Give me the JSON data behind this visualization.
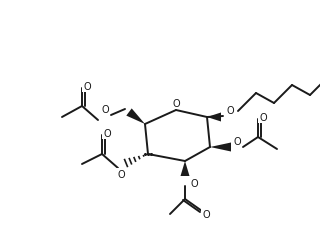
{
  "bg_color": "#ffffff",
  "line_color": "#1a1a1a",
  "lw": 1.4,
  "ring_O_label": "O",
  "octyl_O_label": "O",
  "acetate_O_labels": [
    "O",
    "O",
    "O",
    "O"
  ],
  "acetate_carbonyl_O": [
    "O",
    "O",
    "O",
    "O"
  ]
}
